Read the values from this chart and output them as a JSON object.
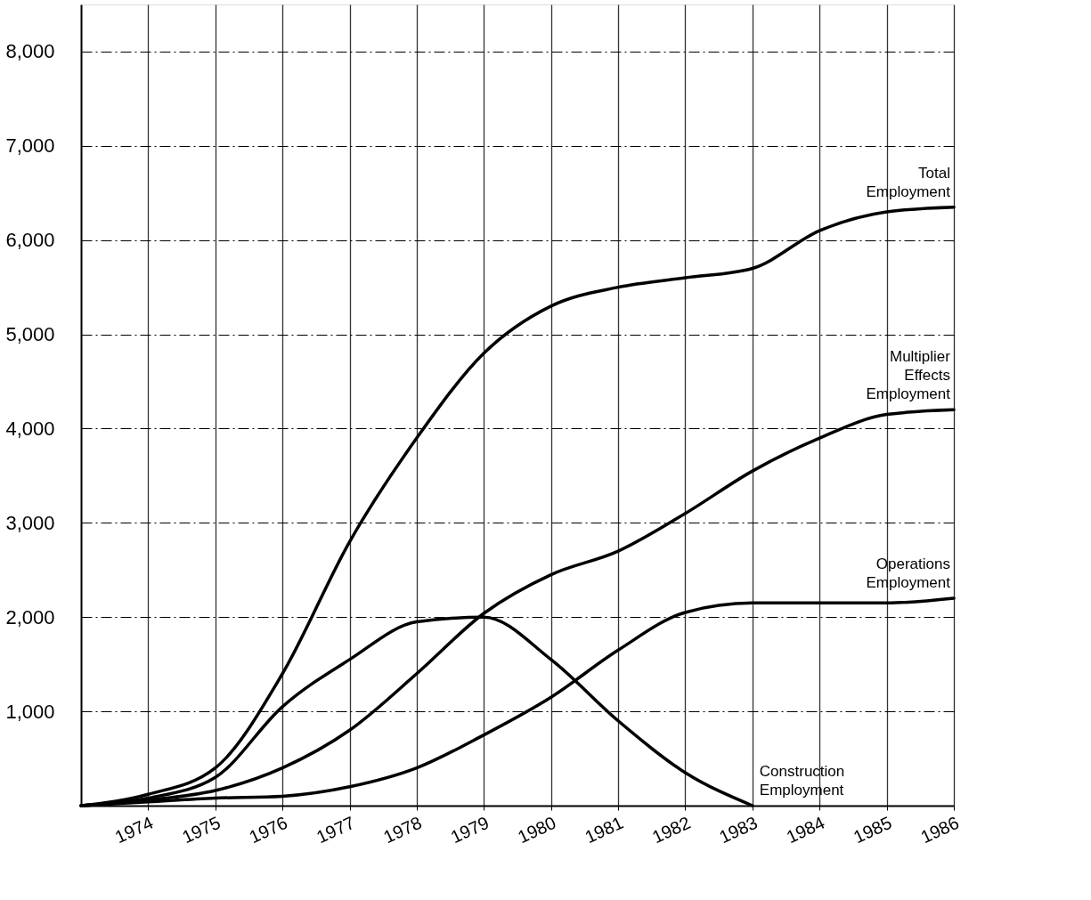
{
  "chart_data": {
    "type": "line",
    "x": [
      1973,
      1974,
      1975,
      1976,
      1977,
      1978,
      1979,
      1980,
      1981,
      1982,
      1983,
      1984,
      1985,
      1986
    ],
    "series": [
      {
        "name": "Total Employment",
        "color": "#000000",
        "values": [
          0,
          120,
          400,
          1400,
          2800,
          3900,
          4800,
          5300,
          5500,
          5600,
          5700,
          6100,
          6300,
          6350
        ]
      },
      {
        "name": "Multiplier Effects Employment",
        "color": "#000000",
        "values": [
          0,
          60,
          160,
          400,
          800,
          1400,
          2040,
          2450,
          2700,
          3100,
          3550,
          3900,
          4150,
          4200
        ]
      },
      {
        "name": "Operations Employment",
        "color": "#000000",
        "values": [
          0,
          40,
          80,
          100,
          200,
          400,
          750,
          1150,
          1650,
          2050,
          2150,
          2150,
          2150,
          2200
        ]
      },
      {
        "name": "Construction Employment",
        "color": "#000000",
        "values": [
          0,
          80,
          300,
          1050,
          1550,
          1950,
          2000,
          1550,
          900,
          350,
          0,
          null,
          null,
          null
        ]
      }
    ],
    "xlim": [
      1973,
      1986
    ],
    "xticks": [
      1974,
      1975,
      1976,
      1977,
      1978,
      1979,
      1980,
      1981,
      1982,
      1983,
      1984,
      1985,
      1986
    ],
    "ylim": [
      0,
      8500
    ],
    "yticks": [
      {
        "value": 1000,
        "label": "1,000"
      },
      {
        "value": 2000,
        "label": "2,000"
      },
      {
        "value": 3000,
        "label": "3,000"
      },
      {
        "value": 4000,
        "label": "4,000"
      },
      {
        "value": 5000,
        "label": "5,000"
      },
      {
        "value": 6000,
        "label": "6,000"
      },
      {
        "value": 7000,
        "label": "7,000"
      },
      {
        "value": 8000,
        "label": "8,000"
      }
    ],
    "grid": true,
    "line_style": "solid"
  }
}
